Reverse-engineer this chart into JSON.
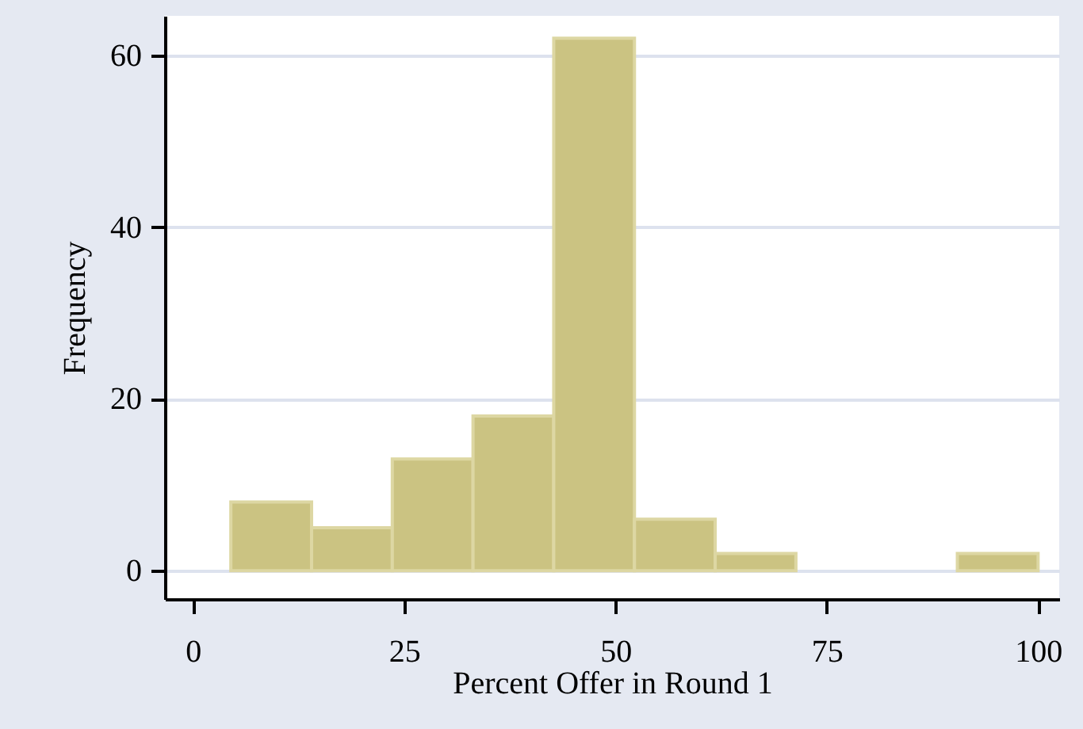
{
  "chart_data": {
    "type": "histogram",
    "xlabel": "Percent Offer in Round 1",
    "ylabel": "Frequency",
    "bins": [
      4.5,
      14.05,
      23.6,
      33.15,
      42.7,
      52.25,
      61.8,
      71.35,
      80.9,
      90.45,
      100
    ],
    "values": [
      8,
      5,
      13,
      18,
      62,
      6,
      2,
      0,
      0,
      2
    ],
    "color": "#cbc382",
    "xlim": [
      -3.3,
      102.5
    ],
    "xticks": [
      0,
      25,
      50,
      75,
      100
    ],
    "ylim": [
      -3.3,
      64.6
    ],
    "yticks": [
      0,
      20,
      40,
      60
    ],
    "grid": "y"
  }
}
